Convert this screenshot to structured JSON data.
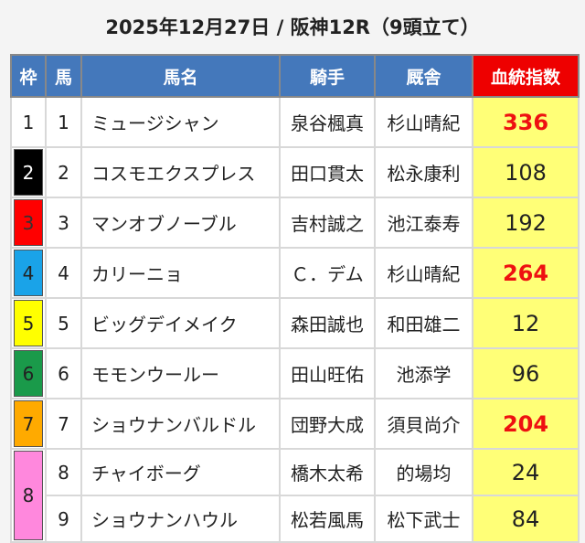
{
  "title": "2025年12月27日 / 阪神12R（9頭立て）",
  "headers": {
    "waku": "枠",
    "uma": "馬",
    "name": "馬名",
    "jockey": "騎手",
    "trainer": "厩舎",
    "index": "血統指数"
  },
  "colors": {
    "header": "#4478bb",
    "index_header": "#ee0000",
    "score_bg": "#ffff77",
    "score_high": "#ee1111"
  },
  "rows": [
    {
      "waku": "1",
      "uma": "1",
      "name": "ミュージシャン",
      "jockey": "泉谷楓真",
      "trainer": "杉山晴紀",
      "score": "336",
      "high": true,
      "color": "#ffffff",
      "text": "#222"
    },
    {
      "waku": "2",
      "uma": "2",
      "name": "コスモエクスプレス",
      "jockey": "田口貫太",
      "trainer": "松永康利",
      "score": "108",
      "high": false,
      "color": "#000000",
      "text": "#ffffff"
    },
    {
      "waku": "3",
      "uma": "3",
      "name": "マンオブノーブル",
      "jockey": "吉村誠之",
      "trainer": "池江泰寿",
      "score": "192",
      "high": false,
      "color": "#ff0000",
      "text": "#333"
    },
    {
      "waku": "4",
      "uma": "4",
      "name": "カリーニョ",
      "jockey": "Ｃ．デム",
      "trainer": "杉山晴紀",
      "score": "264",
      "high": true,
      "color": "#1aa3e8",
      "text": "#222"
    },
    {
      "waku": "5",
      "uma": "5",
      "name": "ビッグデイメイク",
      "jockey": "森田誠也",
      "trainer": "和田雄二",
      "score": "12",
      "high": false,
      "color": "#ffff00",
      "text": "#222"
    },
    {
      "waku": "6",
      "uma": "6",
      "name": "モモンウールー",
      "jockey": "田山旺佑",
      "trainer": "池添学",
      "score": "96",
      "high": false,
      "color": "#1a9a4a",
      "text": "#222"
    },
    {
      "waku": "7",
      "uma": "7",
      "name": "ショウナンバルドル",
      "jockey": "団野大成",
      "trainer": "須貝尚介",
      "score": "204",
      "high": true,
      "color": "#ffaa00",
      "text": "#222"
    },
    {
      "waku": "8",
      "uma": "8",
      "name": "チャイボーグ",
      "jockey": "橋木太希",
      "trainer": "的場均",
      "score": "24",
      "high": false,
      "color": "#ff88dd",
      "text": "#222"
    },
    {
      "waku": "",
      "uma": "9",
      "name": "ショウナンハウル",
      "jockey": "松若風馬",
      "trainer": "松下武士",
      "score": "84",
      "high": false,
      "color": "#ff88dd",
      "text": "#222"
    }
  ]
}
